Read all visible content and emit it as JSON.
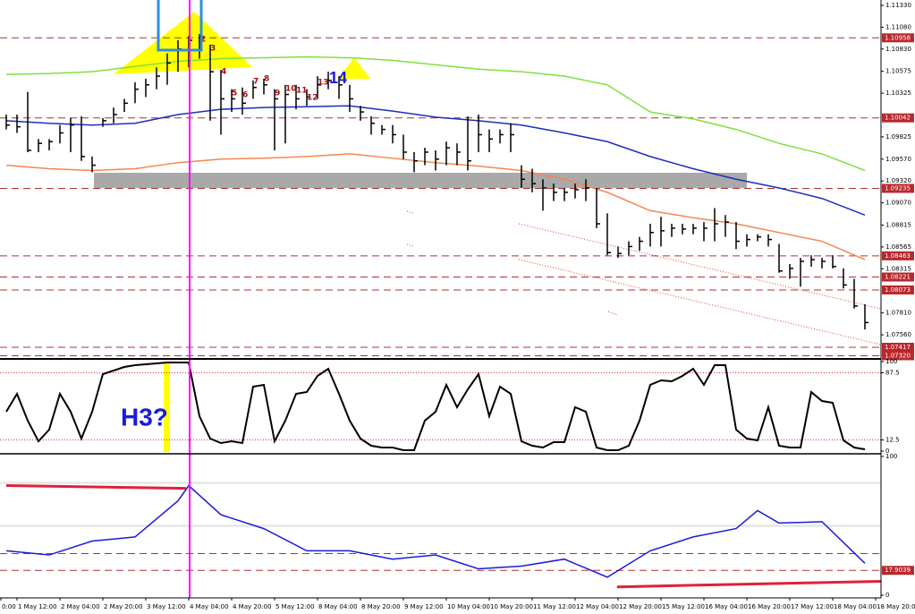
{
  "chart_data": [
    {
      "type": "ohlc",
      "color": "#000000",
      "high": [
        1.1008,
        1.1008,
        1.1034,
        1.098,
        1.098,
        1.0996,
        1.1004,
        1.1006,
        1.096,
        1.1004,
        1.1016,
        1.1026,
        1.1045,
        1.1049,
        1.1062,
        1.1078,
        1.1093,
        1.1098,
        1.11,
        1.1088,
        1.1059,
        1.1037,
        1.1039,
        1.1047,
        1.1049,
        1.1037,
        1.1042,
        1.1042,
        1.1037,
        1.1052,
        1.1057,
        1.1052,
        1.1042,
        1.1018,
        1.1006,
        1.0996,
        1.0996,
        1.0985,
        1.0965,
        1.097,
        1.0967,
        1.0977,
        1.0975,
        1.1006,
        1.1008,
        1.0991,
        1.0991,
        1.0998,
        1.095,
        1.0946,
        1.0934,
        1.0929,
        1.0924,
        1.0929,
        1.0934,
        1.0924,
        1.0895,
        1.0857,
        1.0863,
        1.0868,
        1.0883,
        1.0891,
        1.0883,
        1.0883,
        1.0883,
        1.0885,
        1.0901,
        1.0893,
        1.0885,
        1.0871,
        1.0871,
        1.0871,
        1.086,
        1.0837,
        1.0844,
        1.0847,
        1.0844,
        1.0847,
        1.0832,
        1.082,
        1.0791
      ],
      "low": [
        1.0991,
        1.0987,
        1.0965,
        1.0965,
        1.0967,
        1.0975,
        1.0965,
        1.0955,
        1.0942,
        1.0994,
        1.0998,
        1.1011,
        1.1021,
        1.1028,
        1.1037,
        1.1042,
        1.1057,
        1.1062,
        1.1072,
        1.1001,
        1.0985,
        1.1011,
        1.1008,
        1.1026,
        1.1031,
        1.0967,
        1.0975,
        1.1014,
        1.1018,
        1.1026,
        1.1037,
        1.1026,
        1.1011,
        1.1001,
        1.0985,
        1.0985,
        1.0975,
        1.0957,
        1.0942,
        1.095,
        1.0944,
        1.095,
        1.095,
        1.0944,
        1.0965,
        1.0965,
        1.0975,
        1.0965,
        1.0924,
        1.0919,
        1.0898,
        1.0909,
        1.0909,
        1.0912,
        1.0909,
        1.0878,
        1.0847,
        1.0844,
        1.0847,
        1.0852,
        1.0857,
        1.0857,
        1.0868,
        1.0871,
        1.0871,
        1.0863,
        1.0863,
        1.0868,
        1.0854,
        1.0857,
        1.0863,
        1.0857,
        1.0827,
        1.082,
        1.0811,
        1.0834,
        1.0832,
        1.0832,
        1.0809,
        1.0786,
        1.0762
      ],
      "close": [
        1.0996,
        1.0994,
        1.0967,
        1.0975,
        1.0977,
        1.0987,
        1.0996,
        1.096,
        1.095,
        1.1001,
        1.1008,
        1.1021,
        1.1037,
        1.1042,
        1.1052,
        1.1067,
        1.1083,
        1.1093,
        1.1096,
        1.1057,
        1.1026,
        1.1026,
        1.1021,
        1.1039,
        1.1042,
        1.1026,
        1.1031,
        1.1026,
        1.1028,
        1.1042,
        1.1047,
        1.1042,
        1.1026,
        1.1011,
        1.0998,
        1.0991,
        1.0985,
        1.0965,
        1.0955,
        1.0965,
        1.0957,
        1.097,
        1.0965,
        1.0955,
        1.0985,
        1.098,
        1.0985,
        1.0985,
        1.0934,
        1.0929,
        1.0924,
        1.0919,
        1.0919,
        1.0922,
        1.0924,
        1.0883,
        1.085,
        1.0849,
        1.0857,
        1.0863,
        1.0873,
        1.0875,
        1.0878,
        1.0877,
        1.0878,
        1.0878,
        1.0883,
        1.0885,
        1.0863,
        1.0865,
        1.0868,
        1.0865,
        1.0829,
        1.0832,
        1.084,
        1.0842,
        1.084,
        1.0834,
        1.0813,
        1.0789,
        1.077
      ],
      "series": [
        {
          "color": "#7fe03a",
          "x": [
            0,
            4,
            8,
            12,
            16,
            20,
            24,
            28,
            32,
            36,
            40,
            44,
            48,
            52,
            56,
            60,
            64,
            68,
            72,
            76,
            80
          ],
          "values": [
            1.1054,
            1.1055,
            1.1057,
            1.1063,
            1.1069,
            1.1072,
            1.1073,
            1.1074,
            1.1073,
            1.107,
            1.1065,
            1.106,
            1.1057,
            1.1052,
            1.1042,
            1.1011,
            1.1003,
            1.0991,
            1.0975,
            1.0963,
            1.0944
          ]
        },
        {
          "color": "#1c2fb8",
          "x": [
            0,
            4,
            8,
            12,
            16,
            20,
            24,
            28,
            32,
            36,
            40,
            44,
            48,
            52,
            56,
            60,
            64,
            68,
            72,
            76,
            80
          ],
          "values": [
            1.1001,
            1.0998,
            1.0996,
            1.0998,
            1.1008,
            1.1014,
            1.1016,
            1.1017,
            1.1018,
            1.1012,
            1.1005,
            1.1001,
            1.0996,
            1.0987,
            1.0977,
            1.096,
            1.0946,
            1.0934,
            1.0924,
            1.0912,
            1.0893
          ]
        },
        {
          "color": "#f5874f",
          "x": [
            0,
            4,
            8,
            12,
            16,
            20,
            24,
            28,
            32,
            36,
            40,
            44,
            48,
            52,
            56,
            60,
            64,
            68,
            72,
            76,
            80
          ],
          "values": [
            1.095,
            1.0946,
            1.0944,
            1.0946,
            1.0953,
            1.0957,
            1.0958,
            1.096,
            1.0963,
            1.0958,
            1.0953,
            1.0949,
            1.0944,
            1.0934,
            1.0919,
            1.0898,
            1.089,
            1.0883,
            1.0873,
            1.0863,
            1.0842
          ]
        }
      ],
      "ylim": [
        1.07294,
        1.11391
      ],
      "yticks": [
        {
          "value": 1.1133,
          "label": "1.11330"
        },
        {
          "value": 1.1108,
          "label": "1.11080"
        },
        {
          "value": 1.1083,
          "label": "1.10830"
        },
        1.10575,
        1.10325,
        1.09825,
        {
          "value": 1.0957,
          "label": "1.09570"
        },
        {
          "value": 1.0932,
          "label": "1.09320"
        },
        {
          "value": 1.0907,
          "label": "1.09070"
        },
        1.08815,
        1.08565,
        1.08315,
        {
          "value": 1.0781,
          "label": "1.07810"
        },
        {
          "value": 1.0756,
          "label": "1.07560"
        }
      ],
      "levels": [
        1.10958,
        1.10042,
        1.09235,
        1.08463,
        1.08221,
        1.08073,
        1.07417,
        {
          "value": 1.0732,
          "label": "1.07320"
        }
      ],
      "annotations": [
        "2",
        "3",
        "4",
        "5",
        "6",
        "7",
        "8",
        "9",
        "10",
        "11",
        "12",
        "13",
        "14"
      ]
    },
    {
      "type": "line",
      "color": "#000000",
      "values": [
        44,
        64,
        34,
        11,
        24,
        64,
        44,
        14,
        44,
        86,
        90,
        94,
        96,
        97,
        98,
        99,
        99,
        99,
        39,
        14,
        9,
        11,
        9,
        72,
        74,
        11,
        34,
        64,
        66,
        84,
        92,
        64,
        34,
        14,
        6,
        4,
        4,
        1,
        1,
        34,
        44,
        74,
        49,
        69,
        86,
        39,
        72,
        64,
        11,
        6,
        4,
        10,
        10,
        49,
        44,
        4,
        1,
        1,
        6,
        34,
        74,
        79,
        78,
        84,
        92,
        74,
        96,
        96,
        24,
        14,
        12,
        49,
        6,
        4,
        4,
        66,
        56,
        54,
        12,
        4,
        2
      ],
      "ylim": [
        0,
        100
      ],
      "yticks": [
        100,
        87.5,
        12.5,
        0
      ],
      "annotations": [
        "H3?"
      ]
    },
    {
      "type": "line",
      "series": [
        {
          "color": "#1a1adc",
          "x": [
            0,
            4,
            8,
            12,
            16,
            17,
            20,
            24,
            28,
            32,
            36,
            40,
            44,
            48,
            52,
            56,
            60,
            64,
            68,
            70,
            72,
            76,
            80
          ],
          "values": [
            32,
            29,
            39,
            42,
            68,
            79,
            58,
            48,
            32,
            32,
            26,
            29,
            19,
            21,
            26,
            13,
            32,
            42,
            48,
            61,
            52,
            53,
            23
          ]
        },
        {
          "color": "#e0203a",
          "x": [
            0,
            16.75
          ],
          "values": [
            79,
            77
          ]
        },
        {
          "color": "#e0203a",
          "x": [
            56.9,
            81.5
          ],
          "values": [
            6,
            10
          ]
        }
      ],
      "ylim": [
        0,
        100
      ],
      "yticks": [
        100,
        0
      ],
      "levels": [
        81,
        50,
        30
      ],
      "level_tags": [
        17.9039
      ],
      "time_labels": [
        "0:00",
        "1 May 12:00",
        "2 May 04:00",
        "2 May 20:00",
        "3 May 12:00",
        "4 May 04:00",
        "4 May 20:00",
        "5 May 12:00",
        "8 May 04:00",
        "8 May 20:00",
        "9 May 12:00",
        "10 May 04:00",
        "10 May 20:00",
        "11 May 12:00",
        "12 May 04:00",
        "12 May 20:00",
        "15 May 12:00",
        "16 May 04:00",
        "16 May 20:00",
        "17 May 12:00",
        "18 May 04:00",
        "18 May 20:00"
      ]
    }
  ]
}
